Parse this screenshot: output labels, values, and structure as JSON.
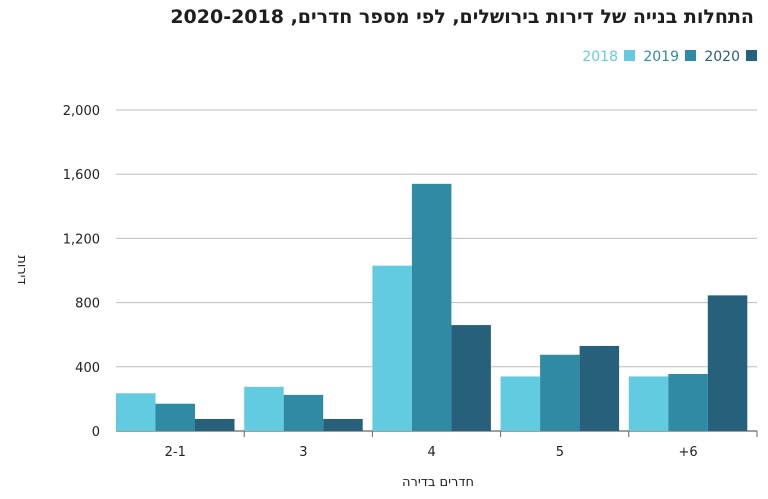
{
  "chart_data": {
    "type": "bar",
    "title": "התחלות בנייה של דירות בירושלים, לפי מספר חדרים, 2020-2018",
    "xlabel": "חדרים בדירה",
    "ylabel": "דירות",
    "ylim": [
      0,
      2000
    ],
    "yticks": [
      "0",
      "400",
      "800",
      "1,200",
      "1,600",
      "2,000"
    ],
    "categories": [
      "2-1",
      "3",
      "4",
      "5",
      "+6"
    ],
    "series": [
      {
        "name": "2018",
        "color": "#63CBE0",
        "values": [
          235,
          275,
          1030,
          340,
          340
        ]
      },
      {
        "name": "2019",
        "color": "#2E8BA3",
        "values": [
          170,
          225,
          1540,
          475,
          355
        ]
      },
      {
        "name": "2020",
        "color": "#27607A",
        "values": [
          75,
          75,
          660,
          530,
          845
        ]
      }
    ],
    "grid": true,
    "legend": "top-right"
  }
}
